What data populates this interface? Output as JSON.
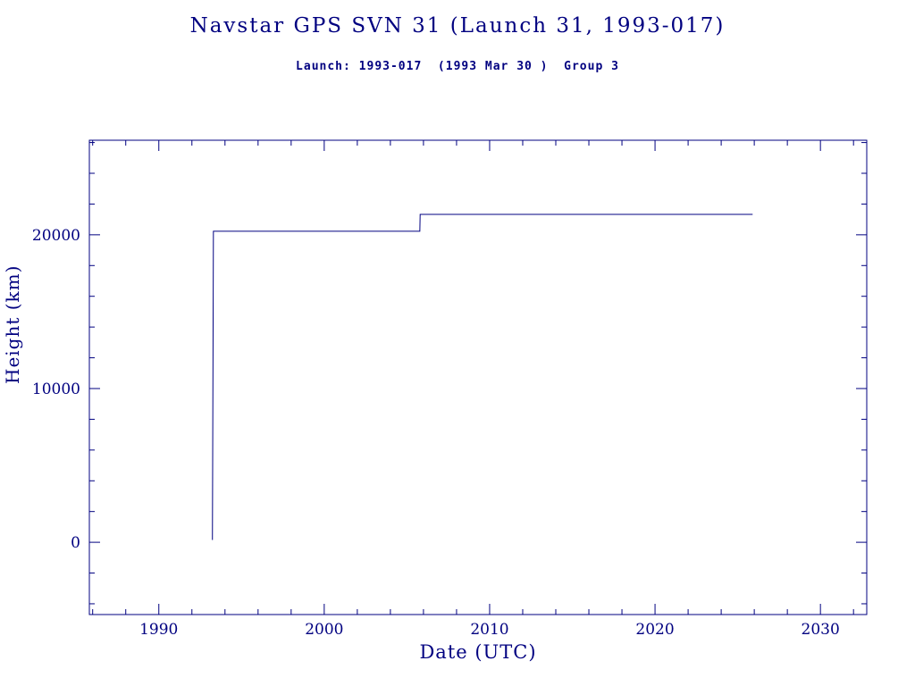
{
  "title": "Navstar GPS SVN 31 (Launch 31, 1993-017)",
  "subtitle": "Launch: 1993-017  (1993 Mar 30 )  Group 3",
  "colors": {
    "accent": "#000080",
    "background": "#ffffff"
  },
  "chart_data": {
    "type": "line",
    "title": "Navstar GPS SVN 31 (Launch 31, 1993-017)",
    "subtitle": "Launch: 1993-017  (1993 Mar 30 )  Group 3",
    "xlabel": "Date (UTC)",
    "ylabel": "Height (km)",
    "xlim": [
      1985.8,
      2032.8
    ],
    "ylim": [
      -4700,
      26150
    ],
    "x_ticks": [
      1990,
      2000,
      2010,
      2020,
      2030
    ],
    "y_ticks": [
      0,
      10000,
      20000
    ],
    "x_minor_step": 2,
    "y_minor_step": 2000,
    "grid": false,
    "legend": false,
    "line_color": "#000080",
    "series": [
      {
        "name": "height",
        "x": [
          1993.24,
          1993.3,
          2005.78,
          2005.8,
          2025.9
        ],
        "y": [
          150,
          20230,
          20230,
          21330,
          21330
        ]
      }
    ]
  }
}
